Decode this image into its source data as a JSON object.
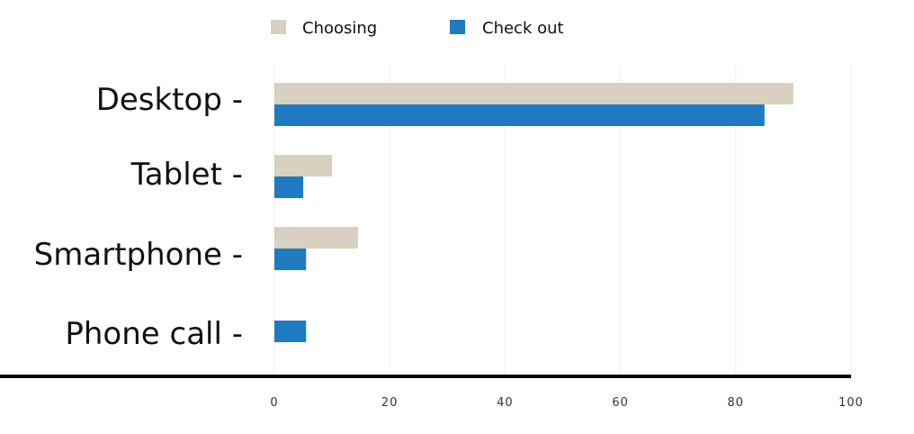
{
  "chart_data": {
    "type": "bar",
    "orientation": "horizontal",
    "title": "",
    "xlabel": "",
    "ylabel": "",
    "categories": [
      "Desktop -",
      "Tablet -",
      "Smartphone -",
      "Phone call -"
    ],
    "series": [
      {
        "name": "Choosing",
        "color": "#d8d1bf",
        "values": [
          90,
          10,
          14.5,
          0
        ]
      },
      {
        "name": "Check out",
        "color": "#1f7bc1",
        "values": [
          85,
          5,
          5.5,
          5.5
        ]
      }
    ],
    "xlim": [
      0,
      100
    ],
    "xticks": [
      0,
      20,
      40,
      60,
      80,
      100
    ],
    "xtick_labels": [
      "0",
      "20",
      "40",
      "60",
      "80",
      "100"
    ],
    "grid": true,
    "legend_position": "top-center"
  }
}
